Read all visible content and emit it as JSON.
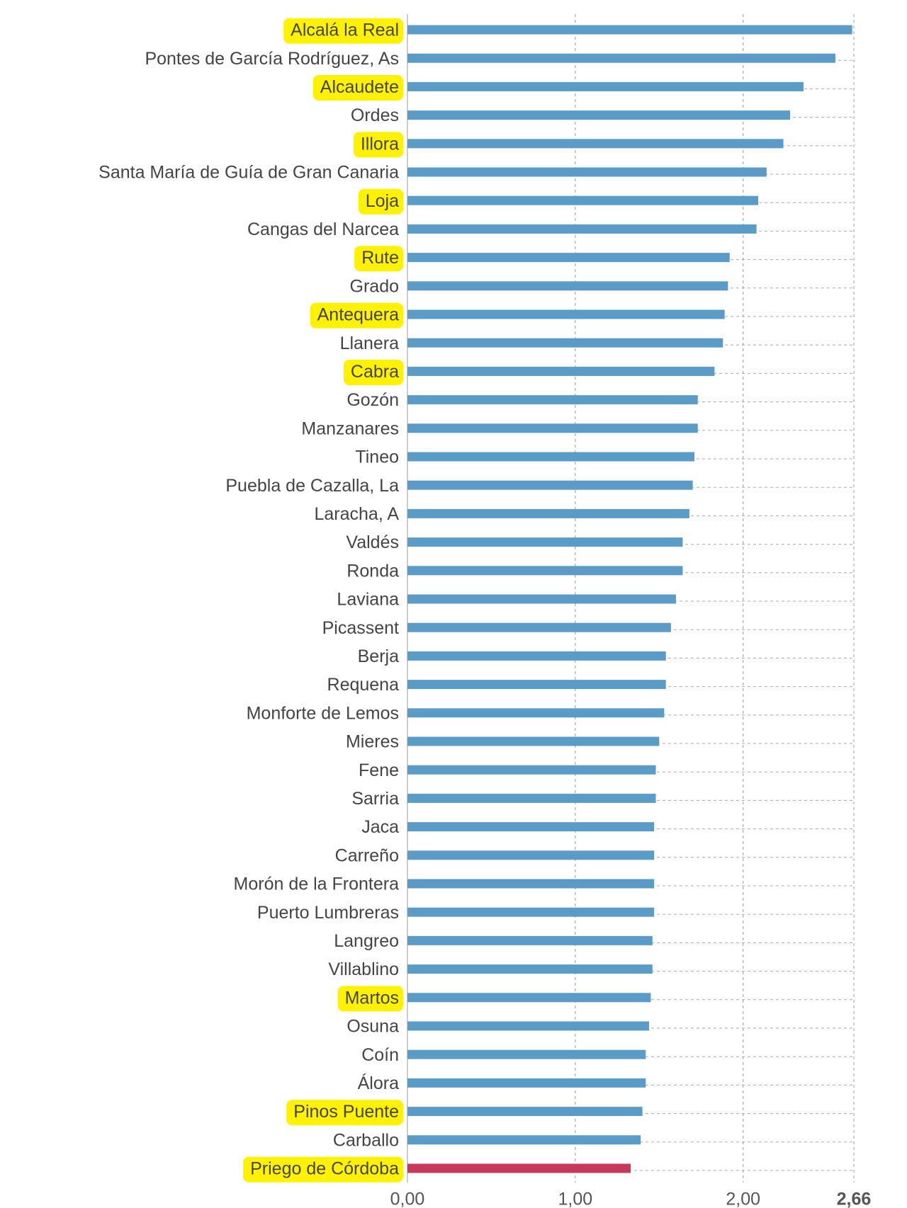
{
  "chart_data": {
    "type": "barh",
    "categories": [
      "Alcalá la Real",
      "Pontes de García Rodríguez, As",
      "Alcaudete",
      "Ordes",
      "Illora",
      "Santa María de Guía de Gran Canaria",
      "Loja",
      "Cangas del Narcea",
      "Rute",
      "Grado",
      "Antequera",
      "Llanera",
      "Cabra",
      "Gozón",
      "Manzanares",
      "Tineo",
      "Puebla de Cazalla, La",
      "Laracha, A",
      "Valdés",
      "Ronda",
      "Laviana",
      "Picassent",
      "Berja",
      "Requena",
      "Monforte de Lemos",
      "Mieres",
      "Fene",
      "Sarria",
      "Jaca",
      "Carreño",
      "Morón de la Frontera",
      "Puerto Lumbreras",
      "Langreo",
      "Villablino",
      "Martos",
      "Osuna",
      "Coín",
      "Álora",
      "Pinos Puente",
      "Carballo",
      "Priego de Córdoba"
    ],
    "values": [
      2.65,
      2.55,
      2.36,
      2.28,
      2.24,
      2.14,
      2.09,
      2.08,
      1.92,
      1.91,
      1.89,
      1.88,
      1.83,
      1.73,
      1.73,
      1.71,
      1.7,
      1.68,
      1.64,
      1.64,
      1.6,
      1.57,
      1.54,
      1.54,
      1.53,
      1.5,
      1.48,
      1.48,
      1.47,
      1.47,
      1.47,
      1.47,
      1.46,
      1.46,
      1.45,
      1.44,
      1.42,
      1.42,
      1.4,
      1.39,
      1.33
    ],
    "colors": [
      "#5b9bc8",
      "#5b9bc8",
      "#5b9bc8",
      "#5b9bc8",
      "#5b9bc8",
      "#5b9bc8",
      "#5b9bc8",
      "#5b9bc8",
      "#5b9bc8",
      "#5b9bc8",
      "#5b9bc8",
      "#5b9bc8",
      "#5b9bc8",
      "#5b9bc8",
      "#5b9bc8",
      "#5b9bc8",
      "#5b9bc8",
      "#5b9bc8",
      "#5b9bc8",
      "#5b9bc8",
      "#5b9bc8",
      "#5b9bc8",
      "#5b9bc8",
      "#5b9bc8",
      "#5b9bc8",
      "#5b9bc8",
      "#5b9bc8",
      "#5b9bc8",
      "#5b9bc8",
      "#5b9bc8",
      "#5b9bc8",
      "#5b9bc8",
      "#5b9bc8",
      "#5b9bc8",
      "#5b9bc8",
      "#5b9bc8",
      "#5b9bc8",
      "#5b9bc8",
      "#5b9bc8",
      "#5b9bc8",
      "#c8385a"
    ],
    "label_highlight": [
      true,
      false,
      true,
      false,
      true,
      false,
      true,
      false,
      true,
      false,
      true,
      false,
      true,
      false,
      false,
      false,
      false,
      false,
      false,
      false,
      false,
      false,
      false,
      false,
      false,
      false,
      false,
      false,
      false,
      false,
      false,
      false,
      false,
      false,
      true,
      false,
      false,
      false,
      true,
      false,
      true
    ],
    "highlight_color": "#fff200",
    "xlim": [
      0,
      2.66
    ],
    "xticks": [
      {
        "value": 0,
        "label": "0,00"
      },
      {
        "value": 1,
        "label": "1,00"
      },
      {
        "value": 2,
        "label": "2,00"
      },
      {
        "value": 2.66,
        "label": "2,66"
      }
    ],
    "grid": true
  }
}
